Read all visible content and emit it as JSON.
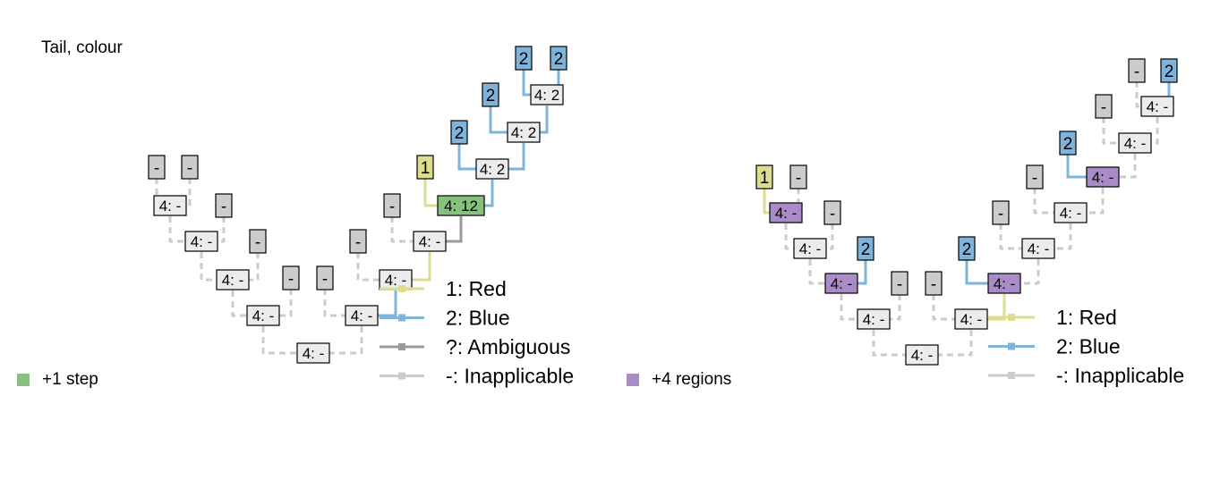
{
  "title": "Tail, colour",
  "colors": {
    "red": "#dddd8f",
    "blue": "#7fb3d9",
    "ambiguous": "#999999",
    "inapplicable": "#cccccc",
    "step": "#86c27e",
    "region": "#a98bc7",
    "node_fill": "#ececec"
  },
  "legend": [
    {
      "label": "1: Red",
      "color_key": "red"
    },
    {
      "label": "2: Blue",
      "color_key": "blue"
    },
    {
      "label": "?: Ambiguous",
      "color_key": "ambiguous"
    },
    {
      "label": "-: Inapplicable",
      "color_key": "inapplicable"
    }
  ],
  "legend_right": [
    {
      "label": "1: Red",
      "color_key": "red"
    },
    {
      "label": "2: Blue",
      "color_key": "blue"
    },
    {
      "label": "-: Inapplicable",
      "color_key": "inapplicable"
    }
  ],
  "notes": {
    "left": "+1 step",
    "right": "+4 regions"
  },
  "tree_left": {
    "tips": [
      {
        "id": "A",
        "label": "-",
        "state": "inapplicable"
      },
      {
        "id": "B",
        "label": "-",
        "state": "inapplicable"
      },
      {
        "id": "C",
        "label": "-",
        "state": "inapplicable"
      },
      {
        "id": "D",
        "label": "-",
        "state": "inapplicable"
      },
      {
        "id": "E",
        "label": "-",
        "state": "inapplicable"
      },
      {
        "id": "F",
        "label": "-",
        "state": "inapplicable"
      },
      {
        "id": "G",
        "label": "-",
        "state": "inapplicable"
      },
      {
        "id": "H",
        "label": "-",
        "state": "inapplicable"
      },
      {
        "id": "I",
        "label": "1",
        "state": "red"
      },
      {
        "id": "J",
        "label": "2",
        "state": "blue"
      },
      {
        "id": "K",
        "label": "2",
        "state": "blue"
      },
      {
        "id": "L",
        "label": "2",
        "state": "blue"
      },
      {
        "id": "M",
        "label": "2",
        "state": "blue"
      }
    ],
    "internal": [
      {
        "id": "n1",
        "label": "4: -",
        "state": "inapplicable"
      },
      {
        "id": "n2",
        "label": "4: -",
        "state": "inapplicable"
      },
      {
        "id": "n3",
        "label": "4: -",
        "state": "inapplicable"
      },
      {
        "id": "n4",
        "label": "4: -",
        "state": "inapplicable"
      },
      {
        "id": "n5",
        "label": "4: -",
        "state": "inapplicable"
      },
      {
        "id": "n6",
        "label": "4: -",
        "state": "inapplicable"
      },
      {
        "id": "n7",
        "label": "4: -",
        "state": "inapplicable"
      },
      {
        "id": "n8",
        "label": "4: -",
        "state": "inapplicable"
      },
      {
        "id": "n9",
        "label": "4: 12",
        "state": "step"
      },
      {
        "id": "n10",
        "label": "4: 2",
        "state": "inapplicable"
      },
      {
        "id": "n11",
        "label": "4: 2",
        "state": "inapplicable"
      },
      {
        "id": "n12",
        "label": "4: 2",
        "state": "inapplicable"
      }
    ]
  },
  "tree_right": {
    "tips": [
      {
        "id": "A",
        "label": "1",
        "state": "red"
      },
      {
        "id": "B",
        "label": "-",
        "state": "inapplicable"
      },
      {
        "id": "C",
        "label": "-",
        "state": "inapplicable"
      },
      {
        "id": "D",
        "label": "2",
        "state": "blue"
      },
      {
        "id": "E",
        "label": "-",
        "state": "inapplicable"
      },
      {
        "id": "F",
        "label": "-",
        "state": "inapplicable"
      },
      {
        "id": "G",
        "label": "2",
        "state": "blue"
      },
      {
        "id": "H",
        "label": "-",
        "state": "inapplicable"
      },
      {
        "id": "I",
        "label": "-",
        "state": "inapplicable"
      },
      {
        "id": "J",
        "label": "2",
        "state": "blue"
      },
      {
        "id": "K",
        "label": "-",
        "state": "inapplicable"
      },
      {
        "id": "L",
        "label": "-",
        "state": "inapplicable"
      },
      {
        "id": "M",
        "label": "2",
        "state": "blue"
      }
    ],
    "internal": [
      {
        "id": "n1",
        "label": "4: -",
        "state": "region"
      },
      {
        "id": "n2",
        "label": "4: -",
        "state": "inapplicable"
      },
      {
        "id": "n3",
        "label": "4: -",
        "state": "region"
      },
      {
        "id": "n4",
        "label": "4: -",
        "state": "inapplicable"
      },
      {
        "id": "n5",
        "label": "4: -",
        "state": "inapplicable"
      },
      {
        "id": "n6",
        "label": "4: -",
        "state": "inapplicable"
      },
      {
        "id": "n7",
        "label": "4: -",
        "state": "region"
      },
      {
        "id": "n8",
        "label": "4: -",
        "state": "inapplicable"
      },
      {
        "id": "n9",
        "label": "4: -",
        "state": "inapplicable"
      },
      {
        "id": "n10",
        "label": "4: -",
        "state": "region"
      },
      {
        "id": "n11",
        "label": "4: -",
        "state": "inapplicable"
      },
      {
        "id": "n12",
        "label": "4: -",
        "state": "inapplicable"
      }
    ]
  }
}
